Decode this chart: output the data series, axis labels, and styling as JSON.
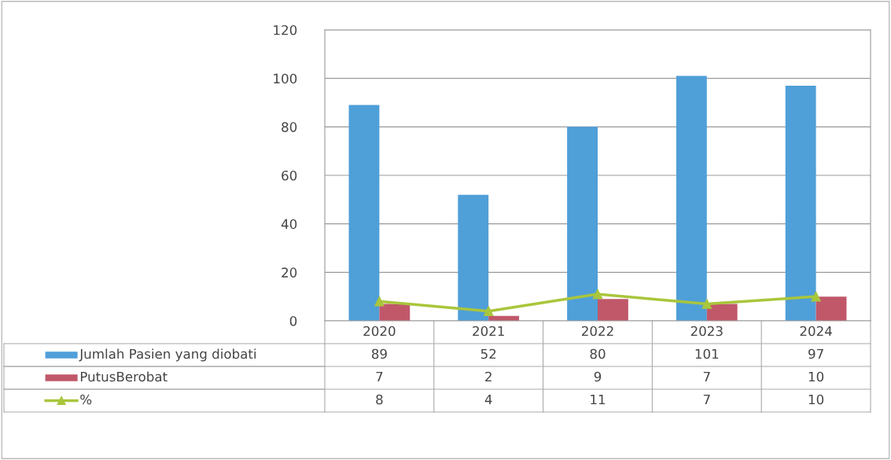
{
  "chart_data": {
    "type": "bar",
    "categories": [
      "2020",
      "2021",
      "2022",
      "2023",
      "2024"
    ],
    "series": [
      {
        "name": "Jumlah Pasien yang diobati",
        "color": "#4f9fd8",
        "values": [
          89,
          52,
          80,
          101,
          97
        ]
      },
      {
        "name": "PutusBerobat",
        "color": "#c0586a",
        "values": [
          7,
          2,
          9,
          7,
          10
        ]
      },
      {
        "name": "%",
        "type": "line",
        "color": "#a9c63c",
        "values": [
          8,
          4,
          11,
          7,
          10
        ]
      }
    ],
    "ylim": [
      0,
      120
    ],
    "yticks": [
      0,
      20,
      40,
      60,
      80,
      100,
      120
    ],
    "grid": "y",
    "legend": "bottom",
    "marker": "triangle",
    "data_labels": true
  }
}
